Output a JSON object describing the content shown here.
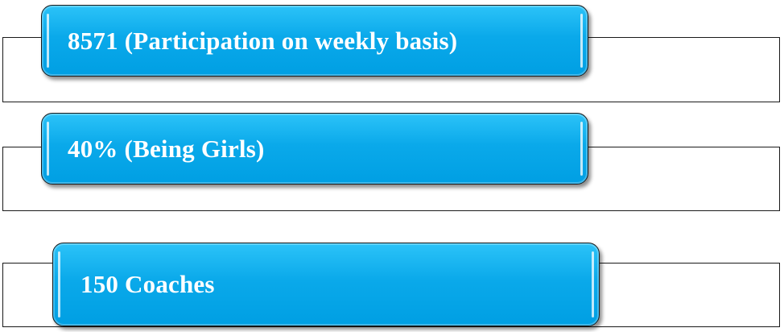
{
  "items": [
    {
      "label": "8571 (Participation on weekly basis)"
    },
    {
      "label": "40% (Being Girls)"
    },
    {
      "label": "150 Coaches"
    }
  ],
  "colors": {
    "pill_fill": "#009fe3",
    "pill_text": "#ffffff",
    "frame_border": "#1a1a1a"
  }
}
